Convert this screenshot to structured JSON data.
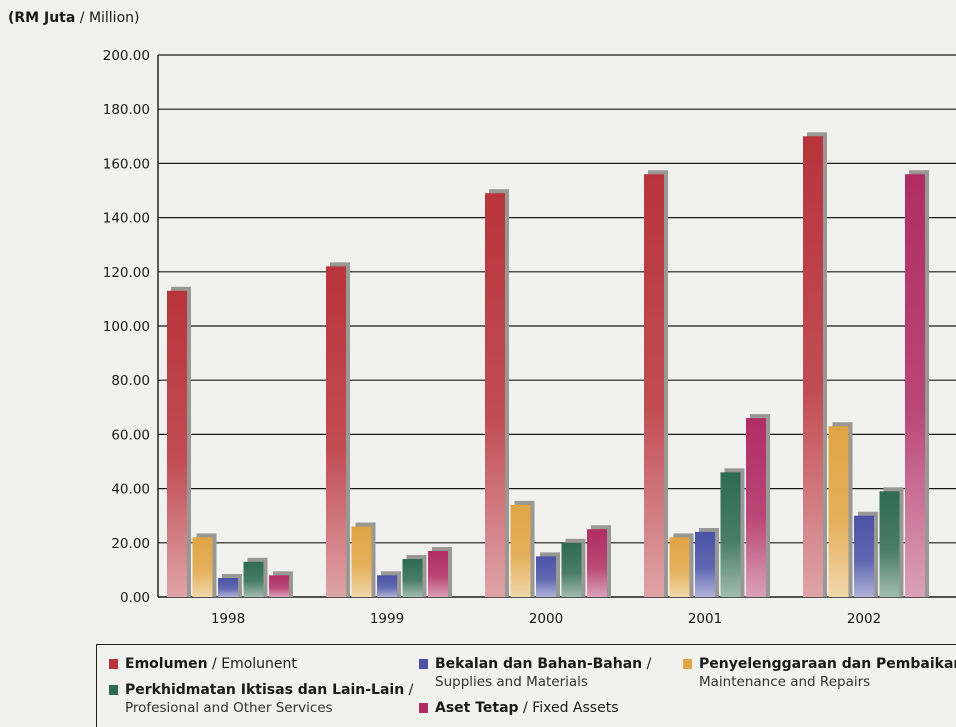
{
  "unit_label": {
    "malay": "(RM Juta",
    "sep": " / ",
    "english": "Million)"
  },
  "chart_data": {
    "type": "bar",
    "title": "",
    "ylabel": "(RM Juta / Million)",
    "ylim": [
      0,
      200
    ],
    "yticks": [
      "0.00",
      "20.00",
      "40.00",
      "60.00",
      "80.00",
      "100.00",
      "120.00",
      "140.00",
      "160.00",
      "180.00",
      "200.00"
    ],
    "grid": true,
    "categories": [
      "1998",
      "1999",
      "2000",
      "2001",
      "2002"
    ],
    "series": [
      {
        "name": "Emolumen / Emolunent",
        "color": "#b8343b",
        "values": [
          113,
          122,
          149,
          156,
          170
        ]
      },
      {
        "name": "Penyelenggaraan dan Pembaikan / Maintenance and Repairs",
        "color": "#e0a545",
        "values": [
          22,
          26,
          34,
          22,
          63
        ]
      },
      {
        "name": "Bekalan dan Bahan-Bahan / Supplies and Materials",
        "color": "#4a53a6",
        "values": [
          7,
          8,
          15,
          24,
          30
        ]
      },
      {
        "name": "Perkhidmatan Iktisas dan Lain-Lain / Profesional and Other Services",
        "color": "#2f6a52",
        "values": [
          13,
          14,
          20,
          46,
          39
        ]
      },
      {
        "name": "Aset Tetap / Fixed Assets",
        "color": "#b02d63",
        "values": [
          8,
          17,
          25,
          66,
          156
        ]
      }
    ],
    "legend_position": "bottom"
  },
  "legend": [
    {
      "bold": "Emolumen",
      "sep": " / ",
      "normal": "Emolunent",
      "sub": "",
      "color": "#b8343b"
    },
    {
      "bold": "Perkhidmatan Iktisas dan Lain-Lain",
      "sep": " /",
      "normal": "",
      "sub": "Profesional and Other Services",
      "color": "#2f6a52"
    },
    {
      "bold": "Bekalan dan Bahan-Bahan",
      "sep": " /",
      "normal": "",
      "sub": "Supplies and Materials",
      "color": "#4a53a6"
    },
    {
      "bold": "Aset Tetap",
      "sep": " / ",
      "normal": "Fixed Assets",
      "sub": "",
      "color": "#b02d63"
    },
    {
      "bold": "Penyelenggaraan dan Pembaikan",
      "sep": " /",
      "normal": "",
      "sub": "Maintenance and Repairs",
      "color": "#e0a545"
    }
  ]
}
